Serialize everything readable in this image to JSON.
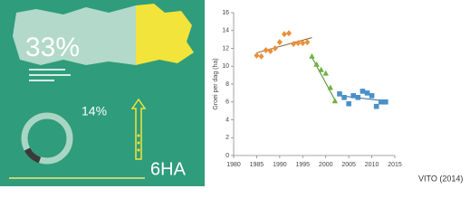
{
  "infographic": {
    "share": "33%",
    "donut": "14%",
    "area": "6HA"
  },
  "chart_data": {
    "type": "scatter",
    "ylabel": "Groei per dag (ha)",
    "xlim": [
      1980,
      2015
    ],
    "xticks": [
      1980,
      1985,
      1990,
      1995,
      2000,
      2005,
      2010,
      2015
    ],
    "ylim": [
      0,
      16
    ],
    "yticks": [
      0,
      2,
      4,
      6,
      8,
      10,
      12,
      14,
      16
    ],
    "series": [
      {
        "color": "#e8913a",
        "marker": "diamond",
        "x": [
          1985,
          1986,
          1987,
          1988,
          1989,
          1990,
          1991,
          1992,
          1993,
          1994,
          1995,
          1996
        ],
        "values": [
          11.2,
          11.1,
          11.8,
          11.7,
          12.0,
          12.7,
          13.6,
          13.7,
          12.5,
          12.6,
          12.6,
          12.7
        ]
      },
      {
        "color": "#6db33f",
        "marker": "triangle",
        "x": [
          1997,
          1998,
          1999,
          2000,
          2001,
          2002
        ],
        "values": [
          11.1,
          10.2,
          9.6,
          9.2,
          7.6,
          6.1
        ]
      },
      {
        "color": "#4a90c8",
        "marker": "square",
        "x": [
          2003,
          2004,
          2005,
          2006,
          2007,
          2008,
          2009,
          2010,
          2011,
          2012,
          2013
        ],
        "values": [
          6.9,
          6.5,
          5.8,
          6.7,
          6.5,
          7.2,
          7.0,
          6.7,
          5.5,
          6.0,
          6.0
        ]
      }
    ],
    "trends": [
      {
        "color": "#8a5a2b",
        "x": [
          1985,
          1997
        ],
        "values": [
          11.5,
          13.2
        ]
      },
      {
        "color": "#4f8a2a",
        "x": [
          1997,
          2002
        ],
        "values": [
          11.0,
          6.2
        ]
      },
      {
        "color": "#2d6a9a",
        "x": [
          2003,
          2013
        ],
        "values": [
          6.7,
          6.1
        ]
      }
    ]
  },
  "caption": "VITO (2014)"
}
